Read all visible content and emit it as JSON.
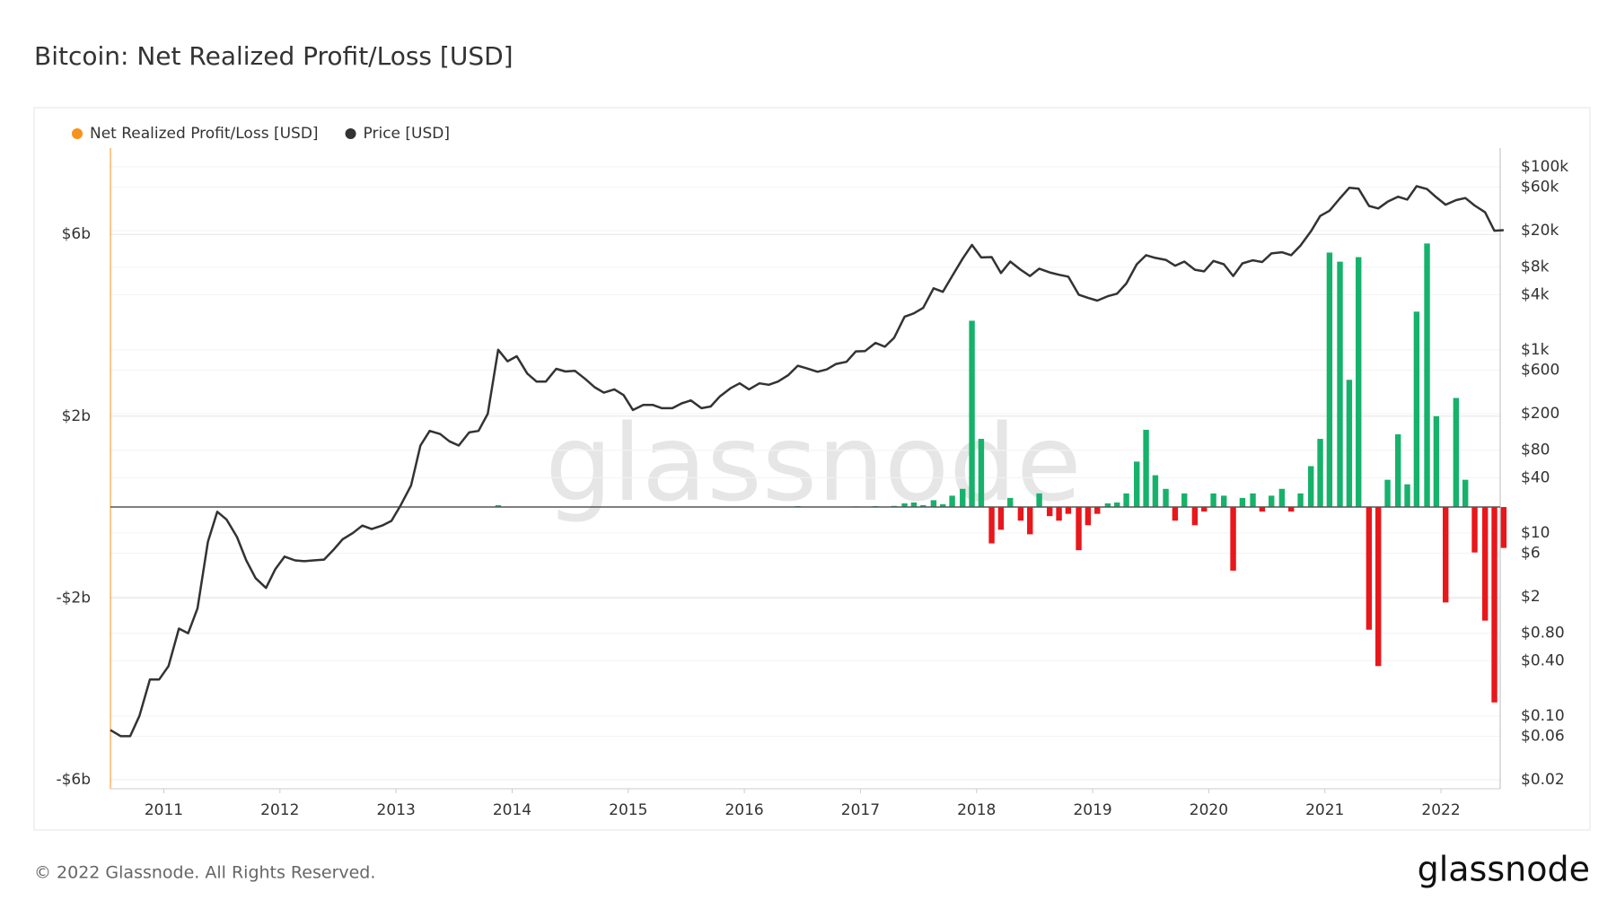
{
  "chart_data": {
    "type": "bar-line",
    "title": "Bitcoin: Net Realized Profit/Loss [USD]",
    "watermark": "glassnode",
    "footer": "© 2022 Glassnode. All Rights Reserved.",
    "brand": "glassnode",
    "grid": true,
    "legend": "top-left",
    "y2scale": "log",
    "xlim": [
      2010.54,
      2022.51
    ],
    "xticks": [
      2011,
      2012,
      2013,
      2014,
      2015,
      2016,
      2017,
      2018,
      2019,
      2020,
      2021,
      2022
    ],
    "ylim": [
      -6200000000,
      7900000000
    ],
    "yticks": [
      {
        "value": 6000000000,
        "label": "$6b"
      },
      {
        "value": 2000000000,
        "label": "$2b"
      },
      {
        "value": -2000000000,
        "label": "-$2b"
      },
      {
        "value": -6000000000,
        "label": "-$6b"
      }
    ],
    "y2lim": [
      0.016,
      160000
    ],
    "y2ticks": [
      {
        "value": 100000,
        "label": "$100k"
      },
      {
        "value": 60000,
        "label": "$60k"
      },
      {
        "value": 20000,
        "label": "$20k"
      },
      {
        "value": 8000,
        "label": "$8k"
      },
      {
        "value": 4000,
        "label": "$4k"
      },
      {
        "value": 1000,
        "label": "$1k"
      },
      {
        "value": 600,
        "label": "$600"
      },
      {
        "value": 200,
        "label": "$200"
      },
      {
        "value": 80,
        "label": "$80"
      },
      {
        "value": 40,
        "label": "$40"
      },
      {
        "value": 10,
        "label": "$10"
      },
      {
        "value": 6,
        "label": "$6"
      },
      {
        "value": 2,
        "label": "$2"
      },
      {
        "value": 0.8,
        "label": "$0.80"
      },
      {
        "value": 0.4,
        "label": "$0.40"
      },
      {
        "value": 0.1,
        "label": "$0.10"
      },
      {
        "value": 0.06,
        "label": "$0.06"
      },
      {
        "value": 0.02,
        "label": "$0.02"
      }
    ],
    "x": [
      2010.54,
      2010.63,
      2010.71,
      2010.79,
      2010.88,
      2010.96,
      2011.04,
      2011.13,
      2011.21,
      2011.29,
      2011.38,
      2011.46,
      2011.54,
      2011.63,
      2011.71,
      2011.79,
      2011.88,
      2011.96,
      2012.04,
      2012.13,
      2012.21,
      2012.29,
      2012.38,
      2012.46,
      2012.54,
      2012.63,
      2012.71,
      2012.79,
      2012.88,
      2012.96,
      2013.04,
      2013.13,
      2013.21,
      2013.29,
      2013.38,
      2013.46,
      2013.54,
      2013.63,
      2013.71,
      2013.79,
      2013.88,
      2013.96,
      2014.04,
      2014.13,
      2014.21,
      2014.29,
      2014.38,
      2014.46,
      2014.54,
      2014.63,
      2014.71,
      2014.79,
      2014.88,
      2014.96,
      2015.04,
      2015.13,
      2015.21,
      2015.29,
      2015.38,
      2015.46,
      2015.54,
      2015.63,
      2015.71,
      2015.79,
      2015.88,
      2015.96,
      2016.04,
      2016.13,
      2016.21,
      2016.29,
      2016.38,
      2016.46,
      2016.54,
      2016.63,
      2016.71,
      2016.79,
      2016.88,
      2016.96,
      2017.04,
      2017.13,
      2017.21,
      2017.29,
      2017.38,
      2017.46,
      2017.54,
      2017.63,
      2017.71,
      2017.79,
      2017.88,
      2017.96,
      2018.04,
      2018.13,
      2018.21,
      2018.29,
      2018.38,
      2018.46,
      2018.54,
      2018.63,
      2018.71,
      2018.79,
      2018.88,
      2018.96,
      2019.04,
      2019.13,
      2019.21,
      2019.29,
      2019.38,
      2019.46,
      2019.54,
      2019.63,
      2019.71,
      2019.79,
      2019.88,
      2019.96,
      2020.04,
      2020.13,
      2020.21,
      2020.29,
      2020.38,
      2020.46,
      2020.54,
      2020.63,
      2020.71,
      2020.79,
      2020.88,
      2020.96,
      2021.04,
      2021.13,
      2021.21,
      2021.29,
      2021.38,
      2021.46,
      2021.54,
      2021.63,
      2021.71,
      2021.79,
      2021.88,
      2021.96,
      2022.04,
      2022.13,
      2022.21,
      2022.29,
      2022.38,
      2022.46,
      2022.54
    ],
    "series": [
      {
        "name": "Net Realized Profit/Loss [USD]",
        "color": "#f7931a",
        "positive_color": "#16b26b",
        "negative_color": "#e8171b",
        "axis": "y",
        "values": [
          0,
          0,
          0,
          0,
          0,
          0,
          0,
          0,
          0,
          0,
          1000000,
          3000000,
          -1000000,
          -1000000,
          -1000000,
          0,
          0,
          0,
          0,
          0,
          0,
          0,
          0,
          0,
          0,
          1000000,
          1000000,
          0,
          0,
          0,
          0,
          1000000,
          3000000,
          8000000,
          2000000,
          -2000000,
          -1000000,
          1000000,
          2000000,
          5000000,
          40000000,
          -10000000,
          -5000000,
          -8000000,
          -5000000,
          -3000000,
          4000000,
          2000000,
          1000000,
          -4000000,
          -6000000,
          -5000000,
          1000000,
          -4000000,
          -8000000,
          -3000000,
          -2000000,
          -3000000,
          -1000000,
          1000000,
          2000000,
          -3000000,
          -1000000,
          3000000,
          10000000,
          8000000,
          -3000000,
          3000000,
          1000000,
          2000000,
          5000000,
          20000000,
          -5000000,
          -4000000,
          2000000,
          5000000,
          6000000,
          15000000,
          10000000,
          20000000,
          -5000000,
          25000000,
          80000000,
          100000000,
          40000000,
          150000000,
          60000000,
          250000000,
          400000000,
          4100000000,
          1500000000,
          -800000000,
          -500000000,
          200000000,
          -300000000,
          -600000000,
          300000000,
          -200000000,
          -300000000,
          -150000000,
          -950000000,
          -400000000,
          -150000000,
          80000000,
          100000000,
          300000000,
          1000000000,
          1700000000,
          700000000,
          400000000,
          -300000000,
          300000000,
          -400000000,
          -100000000,
          300000000,
          250000000,
          -1400000000,
          200000000,
          300000000,
          -100000000,
          250000000,
          400000000,
          -100000000,
          300000000,
          900000000,
          1500000000,
          5600000000,
          5400000000,
          2800000000,
          5500000000,
          -2700000000,
          -3500000000,
          600000000,
          1600000000,
          500000000,
          4300000000,
          5800000000,
          2000000000,
          -2100000000,
          2400000000,
          600000000,
          -1000000000,
          -2500000000,
          -4300000000,
          -900000000
        ]
      },
      {
        "name": "Price [USD]",
        "color": "#333333",
        "axis": "y2",
        "values": [
          0.07,
          0.06,
          0.06,
          0.1,
          0.25,
          0.25,
          0.35,
          0.9,
          0.8,
          1.5,
          8,
          17,
          14,
          9,
          5,
          3.2,
          2.5,
          4,
          5.5,
          5,
          4.9,
          5,
          5.1,
          6.5,
          8.5,
          10,
          12,
          11,
          12,
          13.5,
          20,
          33,
          90,
          130,
          120,
          100,
          90,
          125,
          130,
          200,
          1000,
          750,
          850,
          550,
          450,
          450,
          620,
          580,
          590,
          480,
          390,
          340,
          370,
          320,
          220,
          250,
          250,
          230,
          230,
          260,
          280,
          230,
          240,
          310,
          380,
          430,
          370,
          430,
          415,
          450,
          530,
          670,
          625,
          575,
          610,
          700,
          740,
          960,
          970,
          1190,
          1080,
          1350,
          2300,
          2500,
          2870,
          4700,
          4300,
          6400,
          9900,
          14000,
          10200,
          10300,
          6900,
          9200,
          7500,
          6400,
          7700,
          7000,
          6600,
          6300,
          4000,
          3700,
          3450,
          3850,
          4100,
          5300,
          8600,
          10800,
          10100,
          9600,
          8300,
          9200,
          7500,
          7200,
          9350,
          8600,
          6400,
          8800,
          9500,
          9100,
          11300,
          11650,
          10800,
          13800,
          19700,
          29000,
          33100,
          45200,
          58800,
          57700,
          37300,
          35000,
          41500,
          47100,
          43800,
          61300,
          57000,
          46300,
          38500,
          43200,
          45500,
          37700,
          31800,
          20000,
          20300
        ]
      }
    ]
  }
}
